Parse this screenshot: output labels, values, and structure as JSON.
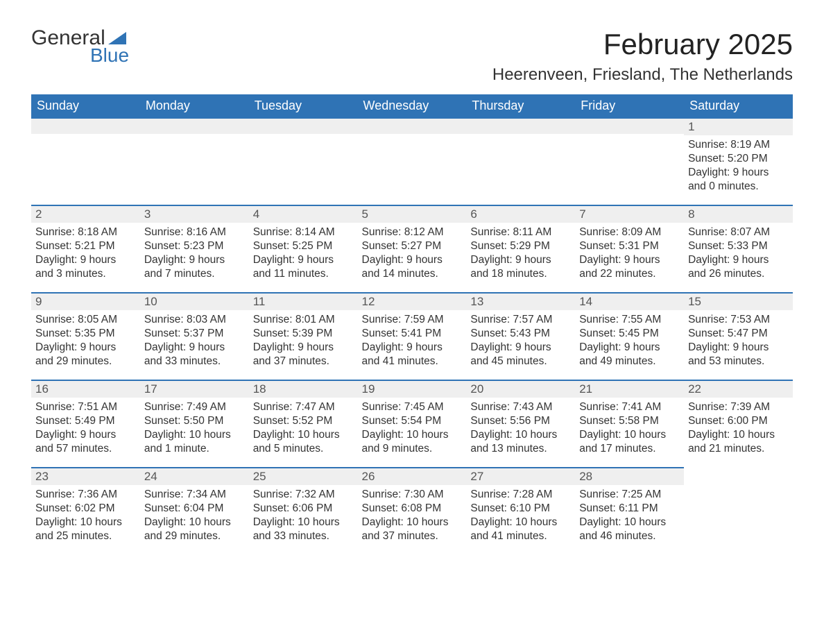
{
  "logo": {
    "word1": "General",
    "word2": "Blue",
    "flag_color": "#2f73b5"
  },
  "title": "February 2025",
  "location": "Heerenveen, Friesland, The Netherlands",
  "colors": {
    "header_bg": "#2f73b5",
    "header_text": "#ffffff",
    "daynum_bg": "#efefef",
    "border_top": "#2f73b5",
    "body_text": "#333333"
  },
  "weekdays": [
    "Sunday",
    "Monday",
    "Tuesday",
    "Wednesday",
    "Thursday",
    "Friday",
    "Saturday"
  ],
  "weeks": [
    [
      null,
      null,
      null,
      null,
      null,
      null,
      {
        "n": "1",
        "sr": "Sunrise: 8:19 AM",
        "ss": "Sunset: 5:20 PM",
        "dl": "Daylight: 9 hours and 0 minutes."
      }
    ],
    [
      {
        "n": "2",
        "sr": "Sunrise: 8:18 AM",
        "ss": "Sunset: 5:21 PM",
        "dl": "Daylight: 9 hours and 3 minutes."
      },
      {
        "n": "3",
        "sr": "Sunrise: 8:16 AM",
        "ss": "Sunset: 5:23 PM",
        "dl": "Daylight: 9 hours and 7 minutes."
      },
      {
        "n": "4",
        "sr": "Sunrise: 8:14 AM",
        "ss": "Sunset: 5:25 PM",
        "dl": "Daylight: 9 hours and 11 minutes."
      },
      {
        "n": "5",
        "sr": "Sunrise: 8:12 AM",
        "ss": "Sunset: 5:27 PM",
        "dl": "Daylight: 9 hours and 14 minutes."
      },
      {
        "n": "6",
        "sr": "Sunrise: 8:11 AM",
        "ss": "Sunset: 5:29 PM",
        "dl": "Daylight: 9 hours and 18 minutes."
      },
      {
        "n": "7",
        "sr": "Sunrise: 8:09 AM",
        "ss": "Sunset: 5:31 PM",
        "dl": "Daylight: 9 hours and 22 minutes."
      },
      {
        "n": "8",
        "sr": "Sunrise: 8:07 AM",
        "ss": "Sunset: 5:33 PM",
        "dl": "Daylight: 9 hours and 26 minutes."
      }
    ],
    [
      {
        "n": "9",
        "sr": "Sunrise: 8:05 AM",
        "ss": "Sunset: 5:35 PM",
        "dl": "Daylight: 9 hours and 29 minutes."
      },
      {
        "n": "10",
        "sr": "Sunrise: 8:03 AM",
        "ss": "Sunset: 5:37 PM",
        "dl": "Daylight: 9 hours and 33 minutes."
      },
      {
        "n": "11",
        "sr": "Sunrise: 8:01 AM",
        "ss": "Sunset: 5:39 PM",
        "dl": "Daylight: 9 hours and 37 minutes."
      },
      {
        "n": "12",
        "sr": "Sunrise: 7:59 AM",
        "ss": "Sunset: 5:41 PM",
        "dl": "Daylight: 9 hours and 41 minutes."
      },
      {
        "n": "13",
        "sr": "Sunrise: 7:57 AM",
        "ss": "Sunset: 5:43 PM",
        "dl": "Daylight: 9 hours and 45 minutes."
      },
      {
        "n": "14",
        "sr": "Sunrise: 7:55 AM",
        "ss": "Sunset: 5:45 PM",
        "dl": "Daylight: 9 hours and 49 minutes."
      },
      {
        "n": "15",
        "sr": "Sunrise: 7:53 AM",
        "ss": "Sunset: 5:47 PM",
        "dl": "Daylight: 9 hours and 53 minutes."
      }
    ],
    [
      {
        "n": "16",
        "sr": "Sunrise: 7:51 AM",
        "ss": "Sunset: 5:49 PM",
        "dl": "Daylight: 9 hours and 57 minutes."
      },
      {
        "n": "17",
        "sr": "Sunrise: 7:49 AM",
        "ss": "Sunset: 5:50 PM",
        "dl": "Daylight: 10 hours and 1 minute."
      },
      {
        "n": "18",
        "sr": "Sunrise: 7:47 AM",
        "ss": "Sunset: 5:52 PM",
        "dl": "Daylight: 10 hours and 5 minutes."
      },
      {
        "n": "19",
        "sr": "Sunrise: 7:45 AM",
        "ss": "Sunset: 5:54 PM",
        "dl": "Daylight: 10 hours and 9 minutes."
      },
      {
        "n": "20",
        "sr": "Sunrise: 7:43 AM",
        "ss": "Sunset: 5:56 PM",
        "dl": "Daylight: 10 hours and 13 minutes."
      },
      {
        "n": "21",
        "sr": "Sunrise: 7:41 AM",
        "ss": "Sunset: 5:58 PM",
        "dl": "Daylight: 10 hours and 17 minutes."
      },
      {
        "n": "22",
        "sr": "Sunrise: 7:39 AM",
        "ss": "Sunset: 6:00 PM",
        "dl": "Daylight: 10 hours and 21 minutes."
      }
    ],
    [
      {
        "n": "23",
        "sr": "Sunrise: 7:36 AM",
        "ss": "Sunset: 6:02 PM",
        "dl": "Daylight: 10 hours and 25 minutes."
      },
      {
        "n": "24",
        "sr": "Sunrise: 7:34 AM",
        "ss": "Sunset: 6:04 PM",
        "dl": "Daylight: 10 hours and 29 minutes."
      },
      {
        "n": "25",
        "sr": "Sunrise: 7:32 AM",
        "ss": "Sunset: 6:06 PM",
        "dl": "Daylight: 10 hours and 33 minutes."
      },
      {
        "n": "26",
        "sr": "Sunrise: 7:30 AM",
        "ss": "Sunset: 6:08 PM",
        "dl": "Daylight: 10 hours and 37 minutes."
      },
      {
        "n": "27",
        "sr": "Sunrise: 7:28 AM",
        "ss": "Sunset: 6:10 PM",
        "dl": "Daylight: 10 hours and 41 minutes."
      },
      {
        "n": "28",
        "sr": "Sunrise: 7:25 AM",
        "ss": "Sunset: 6:11 PM",
        "dl": "Daylight: 10 hours and 46 minutes."
      },
      null
    ]
  ]
}
